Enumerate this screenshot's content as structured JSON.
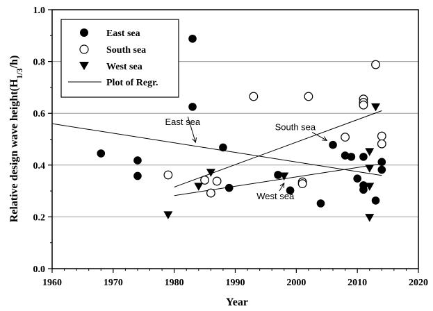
{
  "chart_data": {
    "type": "scatter",
    "xlabel": "Year",
    "ylabel": "Relative design wave height(H",
    "ylabel_sub": "1/3",
    "ylabel_end": "/h)",
    "xlim": [
      1960,
      2020
    ],
    "ylim": [
      0.0,
      1.0
    ],
    "x_ticks": [
      1960,
      1970,
      1980,
      1990,
      2000,
      2010,
      2020
    ],
    "y_ticks": [
      0.0,
      0.2,
      0.4,
      0.6,
      0.8,
      1.0
    ],
    "x_tick_labels": [
      "1960",
      "1970",
      "1980",
      "1990",
      "2000",
      "2010",
      "2020"
    ],
    "y_tick_labels": [
      "0.0",
      "0.2",
      "0.4",
      "0.6",
      "0.8",
      "1.0"
    ],
    "grid": "horizontal",
    "legend_position": "top-left",
    "legend": [
      "East sea",
      "South sea",
      "West sea",
      "Plot of Regr."
    ],
    "series": [
      {
        "name": "East sea",
        "marker": "filled-circle",
        "points": [
          [
            1968,
            0.445
          ],
          [
            1974,
            0.418
          ],
          [
            1974,
            0.358
          ],
          [
            1983,
            0.888
          ],
          [
            1983,
            0.625
          ],
          [
            1988,
            0.468
          ],
          [
            1989,
            0.312
          ],
          [
            1997,
            0.362
          ],
          [
            1999,
            0.302
          ],
          [
            2004,
            0.252
          ],
          [
            2006,
            0.478
          ],
          [
            2008,
            0.437
          ],
          [
            2009,
            0.432
          ],
          [
            2010,
            0.348
          ],
          [
            2011,
            0.432
          ],
          [
            2011,
            0.322
          ],
          [
            2011,
            0.305
          ],
          [
            2013,
            0.263
          ],
          [
            2014,
            0.412
          ],
          [
            2014,
            0.382
          ]
        ]
      },
      {
        "name": "South sea",
        "marker": "open-circle",
        "points": [
          [
            1979,
            0.362
          ],
          [
            1985,
            0.342
          ],
          [
            1986,
            0.292
          ],
          [
            1987,
            0.338
          ],
          [
            1993,
            0.665
          ],
          [
            2001,
            0.335
          ],
          [
            2001,
            0.328
          ],
          [
            2002,
            0.665
          ],
          [
            2008,
            0.508
          ],
          [
            2011,
            0.655
          ],
          [
            2011,
            0.642
          ],
          [
            2011,
            0.632
          ],
          [
            2013,
            0.788
          ],
          [
            2014,
            0.512
          ],
          [
            2014,
            0.482
          ]
        ]
      },
      {
        "name": "West sea",
        "marker": "filled-triangle-down",
        "points": [
          [
            1979,
            0.208
          ],
          [
            1984,
            0.318
          ],
          [
            1986,
            0.372
          ],
          [
            1998,
            0.358
          ],
          [
            2012,
            0.452
          ],
          [
            2012,
            0.388
          ],
          [
            2012,
            0.318
          ],
          [
            2012,
            0.198
          ],
          [
            2013,
            0.625
          ]
        ]
      }
    ],
    "regression_lines": [
      {
        "name": "East sea",
        "from": [
          1960,
          0.56
        ],
        "to": [
          2014,
          0.36
        ]
      },
      {
        "name": "South sea",
        "from": [
          1980,
          0.315
        ],
        "to": [
          2014,
          0.61
        ]
      },
      {
        "name": "West sea",
        "from": [
          1980,
          0.282
        ],
        "to": [
          2014,
          0.405
        ]
      }
    ],
    "annotations": [
      {
        "text": "East sea",
        "label_at": [
          1978.5,
          0.555
        ],
        "arrow_to": [
          1983.5,
          0.488
        ]
      },
      {
        "text": "South sea",
        "label_at": [
          1996.5,
          0.535
        ],
        "arrow_to": [
          2005,
          0.495
        ]
      },
      {
        "text": "West sea",
        "label_at": [
          1993.5,
          0.268
        ],
        "arrow_to": [
          1998,
          0.33
        ]
      }
    ]
  }
}
